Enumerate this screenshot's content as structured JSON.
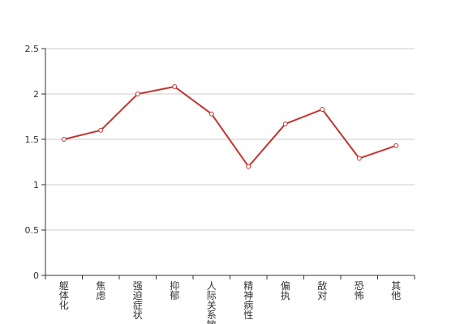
{
  "chart_data": {
    "type": "line",
    "categories": [
      "躯体化",
      "焦虑",
      "强迫症状",
      "抑郁",
      "人际关系敏感",
      "精神病性",
      "偏执",
      "敌对",
      "恐怖",
      "其他"
    ],
    "series": [
      {
        "values": [
          1.5,
          1.6,
          2.0,
          2.08,
          1.78,
          1.2,
          1.67,
          1.83,
          1.29,
          1.43
        ]
      }
    ],
    "yticks": [
      "0",
      "0.5",
      "1",
      "1.5",
      "2",
      "2.5"
    ],
    "ylim": [
      0,
      2.5
    ],
    "grid": true,
    "colors": {
      "line": "#c23531",
      "grid": "#cccccc",
      "axis": "#333333"
    }
  }
}
